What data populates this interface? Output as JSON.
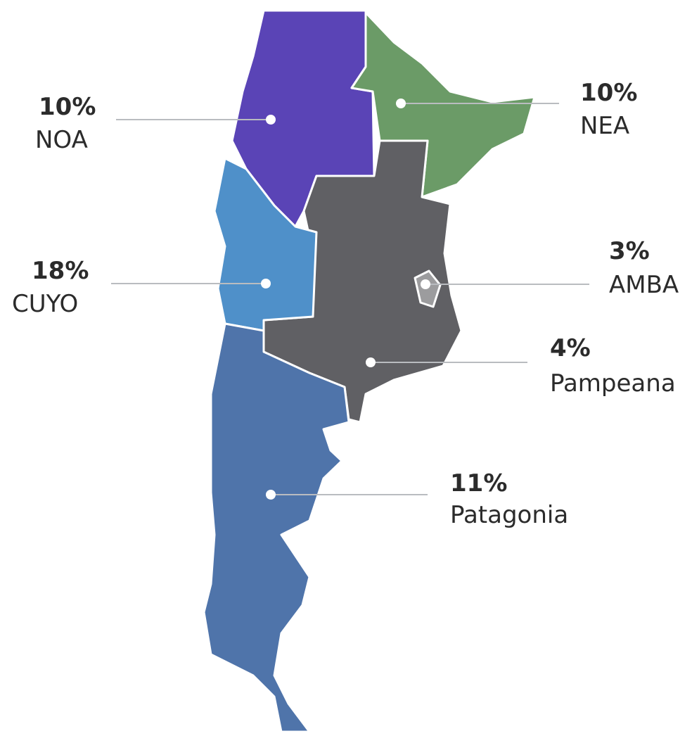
{
  "regions": [
    {
      "name": "NOA",
      "share": "10%"
    },
    {
      "name": "NEA",
      "share": "10%"
    },
    {
      "name": "CUYO",
      "share": "18%"
    },
    {
      "name": "AMBA",
      "share": "3%"
    },
    {
      "name": "Pampeana",
      "share": "4%"
    },
    {
      "name": "Patagonia",
      "share": "11%"
    }
  ]
}
